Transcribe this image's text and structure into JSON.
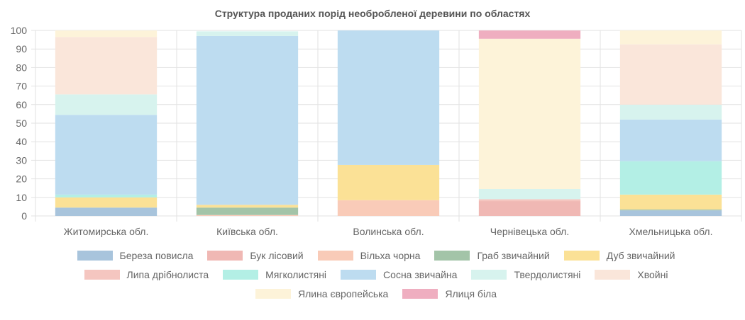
{
  "chart_data": {
    "type": "bar",
    "stacked": true,
    "title": "Структура проданих порід необробленої деревини по областях",
    "xlabel": "",
    "ylabel": "",
    "ylim": [
      0,
      100
    ],
    "grid": true,
    "legend_position": "bottom",
    "yticks": [
      0,
      10,
      20,
      30,
      40,
      50,
      60,
      70,
      80,
      90,
      100
    ],
    "categories": [
      "Житомирська обл.",
      "Київська обл.",
      "Волинська обл.",
      "Чернівецька обл.",
      "Хмельницька обл."
    ],
    "series": [
      {
        "name": "Береза повисла",
        "color": "#a8c4dc",
        "values": [
          4.5,
          0,
          0,
          0,
          3
        ]
      },
      {
        "name": "Бук лісовий",
        "color": "#f0b8b4",
        "values": [
          0,
          0,
          0,
          8,
          0
        ]
      },
      {
        "name": "Вільха чорна",
        "color": "#f9cbb8",
        "values": [
          0,
          0.5,
          8.5,
          0,
          0
        ]
      },
      {
        "name": "Граб звичайний",
        "color": "#a3c4a8",
        "values": [
          0,
          4,
          0,
          0,
          0.5
        ]
      },
      {
        "name": "Дуб звичайний",
        "color": "#fbe196",
        "values": [
          5.5,
          1.5,
          19,
          0,
          8
        ]
      },
      {
        "name": "Липа дрібнолиста",
        "color": "#f5c6c0",
        "values": [
          0,
          0,
          0,
          1,
          0
        ]
      },
      {
        "name": "Мягколистяні",
        "color": "#b3efe5",
        "values": [
          1.5,
          0,
          0,
          0,
          18
        ]
      },
      {
        "name": "Сосна звичайна",
        "color": "#bddcf0",
        "values": [
          43,
          91,
          72.5,
          0,
          22.5
        ]
      },
      {
        "name": "Твердолистяні",
        "color": "#d7f3ee",
        "values": [
          11,
          2.5,
          0,
          5.5,
          8
        ]
      },
      {
        "name": "Хвойні",
        "color": "#fae6da",
        "values": [
          31,
          0,
          0,
          0,
          32.5
        ]
      },
      {
        "name": "Ялина європейська",
        "color": "#fdf3d9",
        "values": [
          3.5,
          0,
          0,
          81,
          7.5
        ]
      },
      {
        "name": "Ялиця біла",
        "color": "#efaec0",
        "values": [
          0,
          0,
          0,
          4.5,
          0
        ]
      }
    ]
  }
}
